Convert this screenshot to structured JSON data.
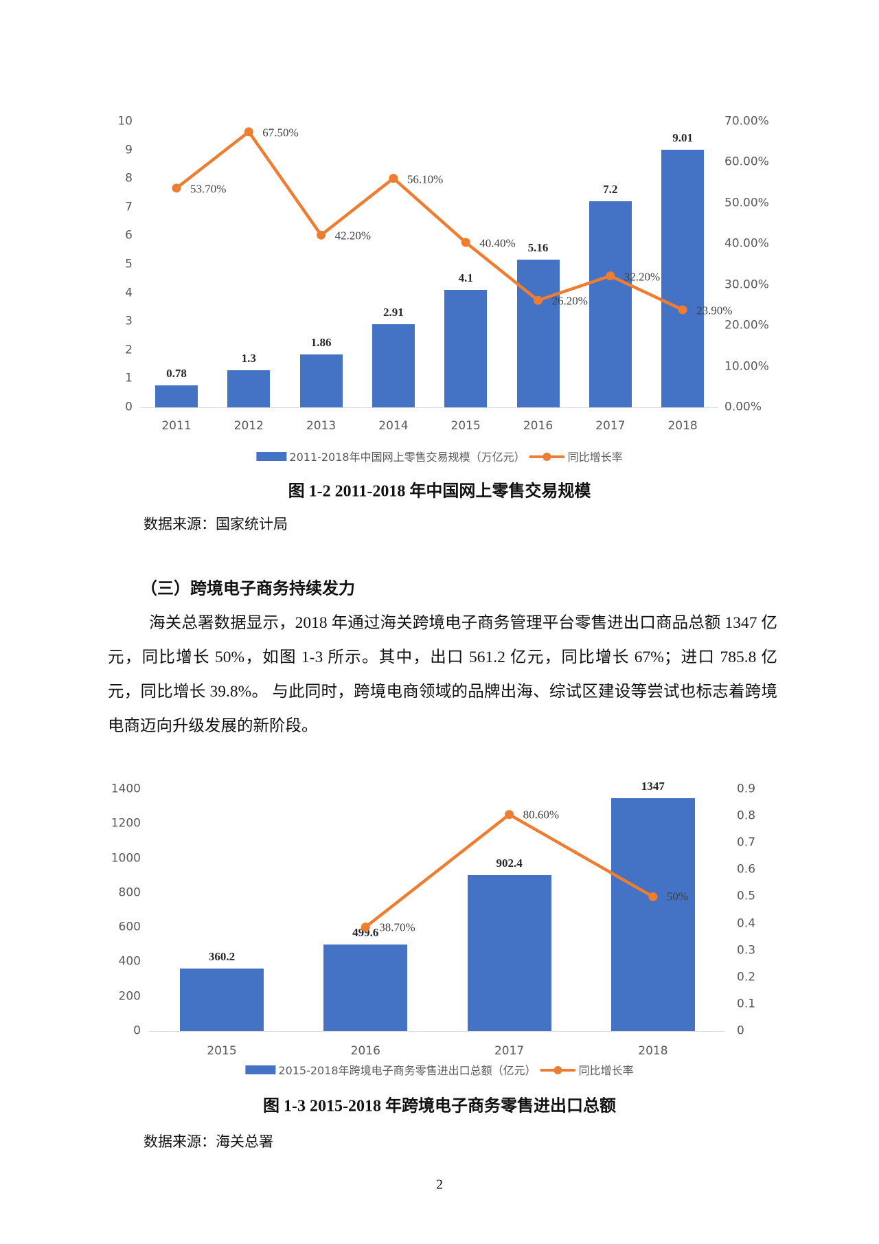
{
  "page_number": "2",
  "figure_1_2": {
    "legend_bar": "2011-2018年中国网上零售交易规模（万亿元）",
    "legend_line": "同比增长率",
    "caption": "图 1-2  2011-2018 年中国网上零售交易规模",
    "source": "数据来源：国家统计局",
    "left_axis_ticks": [
      "0",
      "1",
      "2",
      "3",
      "4",
      "5",
      "6",
      "7",
      "8",
      "9",
      "10"
    ],
    "right_axis_ticks": [
      "0.00%",
      "10.00%",
      "20.00%",
      "30.00%",
      "40.00%",
      "50.00%",
      "60.00%",
      "70.00%"
    ]
  },
  "section": {
    "heading": "（三）跨境电子商务持续发力",
    "paragraph": "海关总署数据显示，2018 年通过海关跨境电子商务管理平台零售进出口商品总额 1347 亿元，同比增长 50%，如图 1-3 所示。其中，出口 561.2 亿元，同比增长 67%；进口 785.8 亿元，同比增长 39.8%。 与此同时，跨境电商领域的品牌出海、综试区建设等尝试也标志着跨境电商迈向升级发展的新阶段。"
  },
  "figure_1_3": {
    "legend_bar": "2015-2018年跨境电子商务零售进出口总额（亿元）",
    "legend_line": "同比增长率",
    "caption": "图 1-3  2015-2018 年跨境电子商务零售进出口总额",
    "source": "数据来源：海关总署",
    "left_axis_ticks": [
      "0",
      "200",
      "400",
      "600",
      "800",
      "1000",
      "1200",
      "1400"
    ],
    "right_axis_ticks": [
      "0",
      "0.1",
      "0.2",
      "0.3",
      "0.4",
      "0.5",
      "0.6",
      "0.7",
      "0.8",
      "0.9"
    ]
  },
  "colors": {
    "bar": "#4472C4",
    "line": "#ED7D31",
    "axis_text": "#595959"
  },
  "chart_data": [
    {
      "type": "bar+line",
      "title": "图 1-2 2011-2018 年中国网上零售交易规模",
      "categories": [
        "2011",
        "2012",
        "2013",
        "2014",
        "2015",
        "2016",
        "2017",
        "2018"
      ],
      "series": [
        {
          "name": "2011-2018年中国网上零售交易规模（万亿元）",
          "type": "bar",
          "axis": "left",
          "values": [
            0.78,
            1.3,
            1.86,
            2.91,
            4.1,
            5.16,
            7.2,
            9.01
          ],
          "labels": [
            "0.78",
            "1.3",
            "1.86",
            "2.91",
            "4.1",
            "5.16",
            "7.2",
            "9.01"
          ]
        },
        {
          "name": "同比增长率",
          "type": "line",
          "axis": "right",
          "values": [
            0.537,
            0.675,
            0.422,
            0.561,
            0.404,
            0.262,
            0.322,
            0.239
          ],
          "labels": [
            "53.70%",
            "67.50%",
            "42.20%",
            "56.10%",
            "40.40%",
            "26.20%",
            "32.20%",
            "23.90%"
          ]
        }
      ],
      "ylim_left": [
        0,
        10
      ],
      "ylim_right": [
        0,
        0.7
      ],
      "xlabel": "",
      "ylabel": "",
      "legend_position": "bottom",
      "grid": false
    },
    {
      "type": "bar+line",
      "title": "图 1-3 2015-2018 年跨境电子商务零售进出口总额",
      "categories": [
        "2015",
        "2016",
        "2017",
        "2018"
      ],
      "series": [
        {
          "name": "2015-2018年跨境电子商务零售进出口总额（亿元）",
          "type": "bar",
          "axis": "left",
          "values": [
            360.2,
            499.6,
            902.4,
            1347
          ],
          "labels": [
            "360.2",
            "499.6",
            "902.4",
            "1347"
          ]
        },
        {
          "name": "同比增长率",
          "type": "line",
          "axis": "right",
          "values": [
            null,
            0.387,
            0.806,
            0.5
          ],
          "labels": [
            "",
            "38.70%",
            "80.60%",
            "50%"
          ]
        }
      ],
      "ylim_left": [
        0,
        1400
      ],
      "ylim_right": [
        0,
        0.9
      ],
      "xlabel": "",
      "ylabel": "",
      "legend_position": "bottom",
      "grid": false
    }
  ]
}
